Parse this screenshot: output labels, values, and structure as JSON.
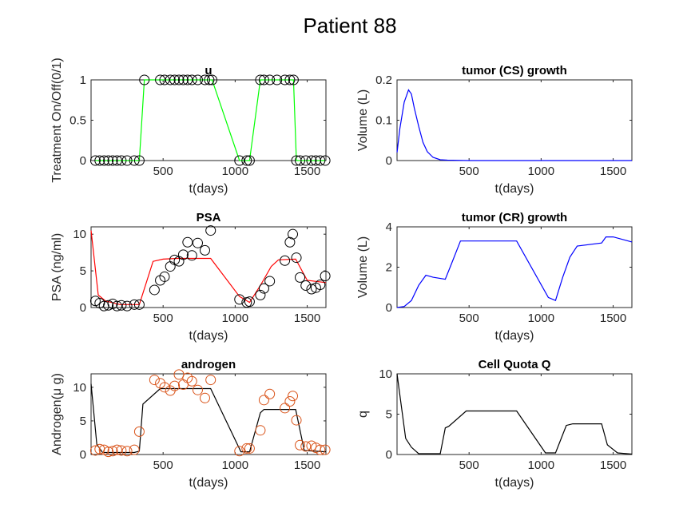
{
  "figure_title": "Patient 88",
  "chart_data": [
    {
      "id": "u",
      "type": "line",
      "title": "u",
      "xlabel": "t(days)",
      "ylabel": "Treatment On/Off(0/1)",
      "xlim": [
        0,
        1630
      ],
      "ylim": [
        0,
        1
      ],
      "xticks": [
        500,
        1000,
        1500
      ],
      "yticks": [
        0,
        0.5,
        1
      ],
      "ytick_labels": [
        "0",
        "0.5",
        "1"
      ],
      "line_color": "#00ff00",
      "marker_color": "#000000",
      "series": [
        {
          "style": "line+circle",
          "x": [
            30,
            60,
            90,
            120,
            150,
            180,
            210,
            250,
            300,
            335,
            370,
            480,
            510,
            550,
            580,
            610,
            640,
            670,
            700,
            740,
            790,
            820,
            840,
            1030,
            1080,
            1100,
            1175,
            1200,
            1240,
            1290,
            1345,
            1380,
            1405,
            1425,
            1450,
            1490,
            1530,
            1560,
            1590,
            1625
          ],
          "y": [
            0,
            0,
            0,
            0,
            0,
            0,
            0,
            0,
            0,
            0,
            1,
            1,
            1,
            1,
            1,
            1,
            1,
            1,
            1,
            1,
            1,
            1,
            1,
            0,
            0,
            0,
            1,
            1,
            1,
            1,
            1,
            1,
            1,
            0,
            0,
            0,
            0,
            0,
            0,
            0
          ]
        }
      ]
    },
    {
      "id": "cs",
      "type": "line",
      "title": "tumor (CS) growth",
      "xlabel": "t(days)",
      "ylabel": "Volume (L)",
      "xlim": [
        0,
        1630
      ],
      "ylim": [
        0,
        0.2
      ],
      "xticks": [
        500,
        1000,
        1500
      ],
      "yticks": [
        0,
        0.1,
        0.2
      ],
      "ytick_labels": [
        "0",
        "0.1",
        "0.2"
      ],
      "line_color": "#0000ff",
      "series": [
        {
          "style": "line",
          "x": [
            0,
            20,
            50,
            80,
            100,
            120,
            150,
            180,
            210,
            250,
            300,
            350,
            500,
            1000,
            1630
          ],
          "y": [
            0.02,
            0.08,
            0.145,
            0.175,
            0.165,
            0.13,
            0.085,
            0.045,
            0.022,
            0.008,
            0.002,
            0.001,
            0,
            0,
            0
          ]
        }
      ]
    },
    {
      "id": "psa",
      "type": "line",
      "title": "PSA",
      "xlabel": "t(days)",
      "ylabel": "PSA (ng/ml)",
      "xlim": [
        0,
        1630
      ],
      "ylim": [
        0,
        11
      ],
      "xticks": [
        500,
        1000,
        1500
      ],
      "yticks": [
        0,
        5,
        10
      ],
      "ytick_labels": [
        "0",
        "5",
        "10"
      ],
      "line_color": "#ff0000",
      "marker_color": "#000000",
      "series": [
        {
          "style": "line",
          "x": [
            0,
            50,
            100,
            200,
            335,
            430,
            500,
            600,
            700,
            830,
            1030,
            1100,
            1175,
            1250,
            1300,
            1420,
            1500,
            1630
          ],
          "y": [
            10.5,
            1.7,
            0.9,
            0.4,
            0.4,
            6.3,
            6.6,
            6.7,
            6.7,
            6.7,
            1.5,
            0.7,
            3,
            5.6,
            6.5,
            6.6,
            3.7,
            3.4
          ]
        },
        {
          "style": "circle",
          "x": [
            30,
            60,
            90,
            120,
            150,
            180,
            210,
            250,
            300,
            335,
            440,
            480,
            510,
            550,
            580,
            610,
            640,
            670,
            700,
            740,
            790,
            830,
            1030,
            1080,
            1100,
            1175,
            1200,
            1240,
            1345,
            1380,
            1400,
            1425,
            1450,
            1490,
            1530,
            1560,
            1590,
            1625
          ],
          "y": [
            0.9,
            0.6,
            0.2,
            0.3,
            0.5,
            0.2,
            0.3,
            0.2,
            0.4,
            0.4,
            2.4,
            3.7,
            4.2,
            5.6,
            6.5,
            6.3,
            7.2,
            8.9,
            7.1,
            8.8,
            7.8,
            10.5,
            1.1,
            0.7,
            0.8,
            1.7,
            2.6,
            3.6,
            6.4,
            8.9,
            10,
            6.8,
            4.1,
            3.0,
            2.5,
            2.7,
            3.1,
            4.3
          ]
        }
      ]
    },
    {
      "id": "cr",
      "type": "line",
      "title": "tumor (CR) growth",
      "xlabel": "t(days)",
      "ylabel": "Volume (L)",
      "xlim": [
        0,
        1630
      ],
      "ylim": [
        0,
        4
      ],
      "xticks": [
        500,
        1000,
        1500
      ],
      "yticks": [
        0,
        2,
        4
      ],
      "ytick_labels": [
        "0",
        "2",
        "4"
      ],
      "line_color": "#0000ff",
      "series": [
        {
          "style": "line",
          "x": [
            0,
            50,
            100,
            150,
            200,
            250,
            335,
            380,
            440,
            830,
            1050,
            1100,
            1150,
            1200,
            1250,
            1420,
            1450,
            1500,
            1630
          ],
          "y": [
            0,
            0.05,
            0.35,
            1.1,
            1.6,
            1.5,
            1.4,
            2.2,
            3.3,
            3.3,
            0.5,
            0.35,
            1.5,
            2.5,
            3.05,
            3.2,
            3.5,
            3.5,
            3.25
          ]
        }
      ]
    },
    {
      "id": "androgen",
      "type": "line",
      "title": "androgen",
      "xlabel": "t(days)",
      "ylabel": "Androgen(μ g)",
      "xlim": [
        0,
        1630
      ],
      "ylim": [
        0,
        12
      ],
      "xticks": [
        500,
        1000,
        1500
      ],
      "yticks": [
        0,
        5,
        10
      ],
      "ytick_labels": [
        "0",
        "5",
        "10"
      ],
      "line_color": "#000000",
      "marker_color": "#d95319",
      "series": [
        {
          "style": "line",
          "x": [
            0,
            40,
            80,
            150,
            300,
            335,
            360,
            480,
            830,
            1040,
            1100,
            1175,
            1200,
            1420,
            1480,
            1630
          ],
          "y": [
            10.5,
            1.5,
            0.3,
            0.3,
            0.3,
            0.5,
            7.5,
            9.8,
            9.8,
            0.4,
            0.4,
            6.2,
            6.7,
            6.7,
            0.6,
            0.4
          ]
        },
        {
          "style": "circle",
          "x": [
            30,
            60,
            90,
            120,
            150,
            180,
            210,
            250,
            300,
            335,
            440,
            480,
            510,
            550,
            580,
            610,
            640,
            670,
            700,
            740,
            790,
            830,
            1030,
            1080,
            1100,
            1175,
            1200,
            1240,
            1345,
            1380,
            1400,
            1425,
            1450,
            1490,
            1530,
            1560,
            1590,
            1625
          ],
          "y": [
            0.6,
            0.8,
            0.7,
            0.4,
            0.5,
            0.7,
            0.6,
            0.5,
            0.7,
            3.4,
            11.1,
            10.6,
            10.0,
            9.5,
            10.2,
            11.9,
            10.4,
            11.4,
            10.9,
            9.6,
            8.4,
            11.1,
            0.5,
            0.9,
            0.9,
            3.6,
            8.1,
            9.0,
            6.9,
            7.9,
            8.7,
            5.1,
            1.4,
            1.2,
            1.3,
            1.0,
            0.7,
            0.7
          ]
        }
      ]
    },
    {
      "id": "q",
      "type": "line",
      "title": "Cell Quota Q",
      "xlabel": "t(days)",
      "ylabel": "q",
      "xlim": [
        0,
        1630
      ],
      "ylim": [
        0,
        10
      ],
      "xticks": [
        500,
        1000,
        1500
      ],
      "yticks": [
        0,
        5,
        10
      ],
      "ytick_labels": [
        "0",
        "5",
        "10"
      ],
      "line_color": "#000000",
      "series": [
        {
          "style": "line",
          "x": [
            0,
            30,
            60,
            100,
            150,
            300,
            335,
            360,
            480,
            830,
            1030,
            1100,
            1175,
            1220,
            1420,
            1460,
            1530,
            1630
          ],
          "y": [
            10,
            6,
            2,
            0.9,
            0.1,
            0.1,
            3.3,
            3.5,
            5.4,
            5.4,
            0.2,
            0.2,
            3.6,
            3.8,
            3.8,
            1.2,
            0.2,
            0.05
          ]
        }
      ]
    }
  ]
}
